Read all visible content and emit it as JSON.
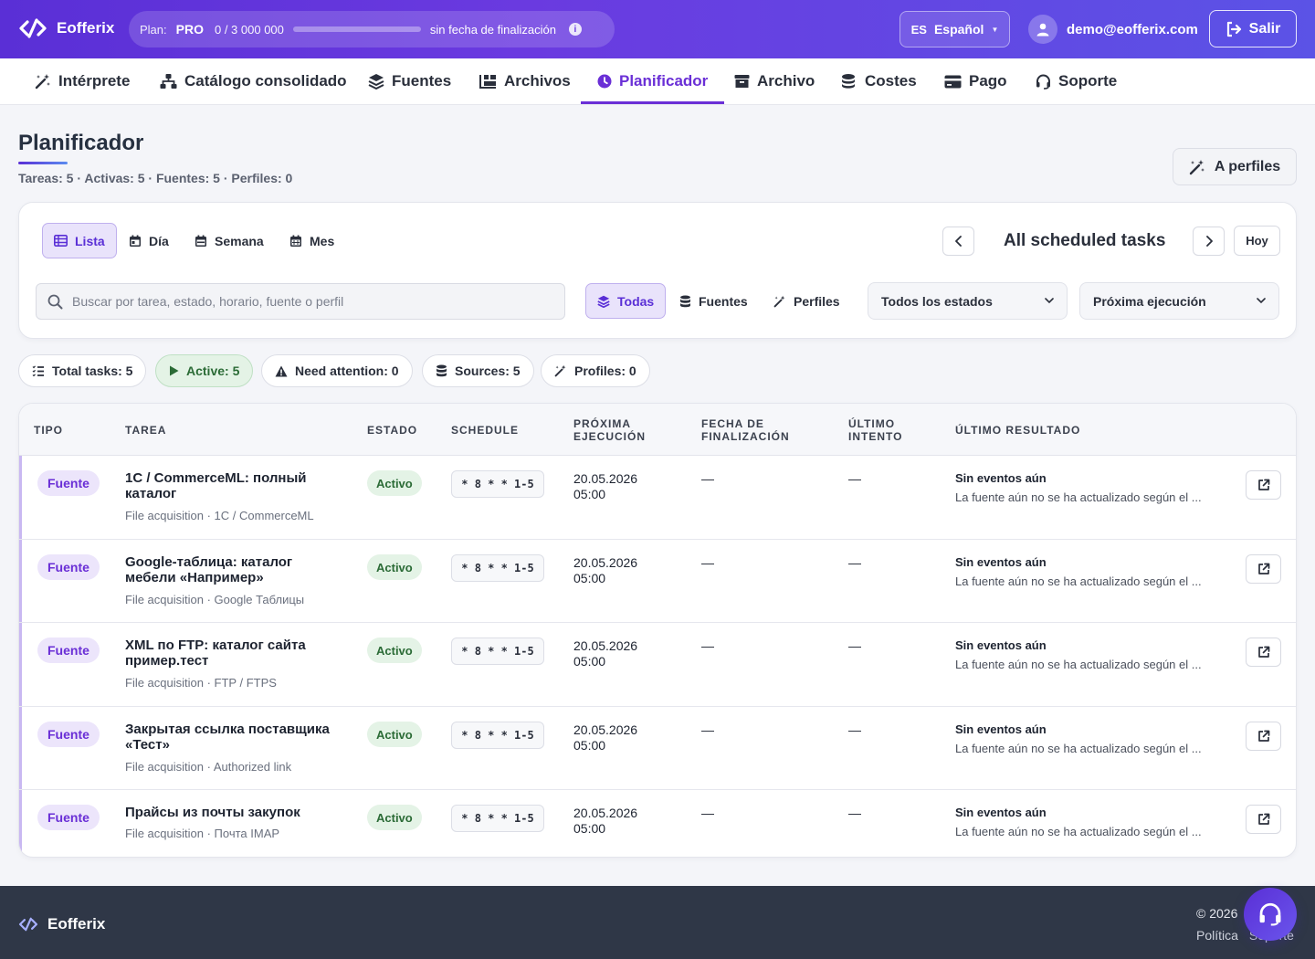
{
  "app": {
    "brand": "Eofferix"
  },
  "topbar": {
    "plan_label": "Plan:",
    "plan_name": "PRO",
    "usage_text": "0 / 3 000 000",
    "usage_fraction": 0.0,
    "plan_end": "sin fecha de finalización",
    "info_icon": "i",
    "lang_code": "ES",
    "lang_name": "Español",
    "user_email": "demo@eofferix.com",
    "logout_label": "Salir"
  },
  "nav": {
    "items": [
      {
        "label": "Intérprete",
        "icon": "magic-wand-icon"
      },
      {
        "label": "Catálogo consolidado",
        "icon": "sitemap-icon"
      },
      {
        "label": "Fuentes",
        "icon": "layers-icon"
      },
      {
        "label": "Archivos",
        "icon": "files-icon"
      },
      {
        "label": "Planificador",
        "icon": "clock-icon",
        "active": true
      },
      {
        "label": "Archivo",
        "icon": "archive-icon"
      },
      {
        "label": "Costes",
        "icon": "coins-icon"
      },
      {
        "label": "Pago",
        "icon": "card-icon"
      },
      {
        "label": "Soporte",
        "icon": "headset-icon"
      }
    ]
  },
  "page": {
    "title": "Planificador",
    "subtitle": "Tareas: 5 · Activas: 5 · Fuentes: 5 · Perfiles: 0",
    "profiles_button": "A perfiles"
  },
  "filters": {
    "views": [
      "Lista",
      "Día",
      "Semana",
      "Mes"
    ],
    "active_view": "Lista",
    "calendar_title": "All scheduled tasks",
    "today_label": "Hoy",
    "search_placeholder": "Buscar por tarea, estado, horario, fuente o perfil",
    "search_value": "",
    "types": [
      "Todas",
      "Fuentes",
      "Perfiles"
    ],
    "active_type": "Todas",
    "status_select": "Todos los estados",
    "sort_select": "Próxima ejecución"
  },
  "stats": [
    {
      "label": "Total tasks: 5",
      "icon": "list-icon"
    },
    {
      "label": "Active: 5",
      "icon": "play-icon",
      "highlight": true
    },
    {
      "label": "Need attention: 0",
      "icon": "warning-icon"
    },
    {
      "label": "Sources: 5",
      "icon": "database-icon"
    },
    {
      "label": "Profiles: 0",
      "icon": "magic-wand-icon"
    }
  ],
  "table": {
    "columns": {
      "tipo": "Tipo",
      "tarea": "Tarea",
      "estado": "Estado",
      "schedule": "Schedule",
      "proxima": "Próxima ejecución",
      "fecha": "Fecha de finalización",
      "ultimo_intento": "Último intento",
      "ultimo_resultado": "Último resultado"
    },
    "rows": [
      {
        "type": "Fuente",
        "name": "1C / CommerceML: полный каталог",
        "sub": "File acquisition · 1C / CommerceML",
        "state": "Activo",
        "cron": "* 8 * * 1-5",
        "next_run": "20.05.2026 05:00",
        "end_date": "—",
        "last_attempt": "—",
        "result_title": "Sin eventos aún",
        "result_text": "La fuente aún no se ha actualizado según el ..."
      },
      {
        "type": "Fuente",
        "name": "Google-таблица: каталог мебели «Например»",
        "sub": "File acquisition · Google Таблицы",
        "state": "Activo",
        "cron": "* 8 * * 1-5",
        "next_run": "20.05.2026 05:00",
        "end_date": "—",
        "last_attempt": "—",
        "result_title": "Sin eventos aún",
        "result_text": "La fuente aún no se ha actualizado según el ..."
      },
      {
        "type": "Fuente",
        "name": "XML по FTP: каталог сайта пример.тест",
        "sub": "File acquisition · FTP / FTPS",
        "state": "Activo",
        "cron": "* 8 * * 1-5",
        "next_run": "20.05.2026 05:00",
        "end_date": "—",
        "last_attempt": "—",
        "result_title": "Sin eventos aún",
        "result_text": "La fuente aún no se ha actualizado según el ..."
      },
      {
        "type": "Fuente",
        "name": "Закрытая ссылка поставщика «Тест»",
        "sub": "File acquisition · Authorized link",
        "state": "Activo",
        "cron": "* 8 * * 1-5",
        "next_run": "20.05.2026 05:00",
        "end_date": "—",
        "last_attempt": "—",
        "result_title": "Sin eventos aún",
        "result_text": "La fuente aún no se ha actualizado según el ..."
      },
      {
        "type": "Fuente",
        "name": "Прайсы из почты закупок",
        "sub": "File acquisition · Почта IMAP",
        "state": "Activo",
        "cron": "* 8 * * 1-5",
        "next_run": "20.05.2026 05:00",
        "end_date": "—",
        "last_attempt": "—",
        "result_title": "Sin eventos aún",
        "result_text": "La fuente aún no se ha actualizado según el ..."
      }
    ]
  },
  "footer": {
    "brand": "Eofferix",
    "copyright": "© 2026",
    "links": [
      "Política",
      "Soporte"
    ]
  },
  "colors": {
    "accent": "#6a2fd6",
    "topbar_start": "#5a2fd6",
    "active_green": "#2b6b36",
    "footer_bg": "#2f3747"
  }
}
